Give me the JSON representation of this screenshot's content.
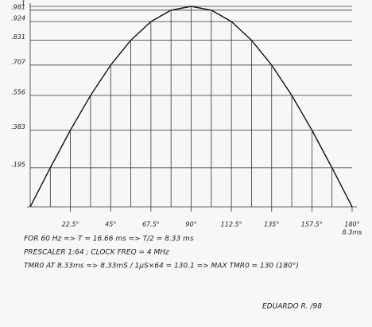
{
  "chart_data": {
    "type": "line",
    "x": [
      0,
      11.25,
      22.5,
      33.75,
      45,
      56.25,
      67.5,
      78.75,
      90,
      101.25,
      112.5,
      123.75,
      135,
      146.25,
      157.5,
      168.75,
      180
    ],
    "values": [
      0,
      0.195,
      0.383,
      0.556,
      0.707,
      0.831,
      0.924,
      0.981,
      1,
      0.981,
      0.924,
      0.831,
      0.707,
      0.556,
      0.383,
      0.195,
      0
    ],
    "color": "#111",
    "xlim": [
      0,
      180
    ],
    "ylim": [
      0,
      1
    ],
    "xticks": [
      {
        "value": 22.5,
        "label": "22.5°"
      },
      {
        "value": 45,
        "label": "45°"
      },
      {
        "value": 67.5,
        "label": "67.5°"
      },
      {
        "value": 90,
        "label": "90°"
      },
      {
        "value": 112.5,
        "label": "112.5°"
      },
      {
        "value": 135,
        "label": "135°"
      },
      {
        "value": 157.5,
        "label": "157.5°"
      },
      {
        "value": 180,
        "label": "180°"
      }
    ],
    "yticks": [
      {
        "value": 0.195,
        "label": ".195"
      },
      {
        "value": 0.383,
        "label": ".383"
      },
      {
        "value": 0.556,
        "label": ".556"
      },
      {
        "value": 0.707,
        "label": ".707"
      },
      {
        "value": 0.831,
        "label": ".831"
      },
      {
        "value": 0.924,
        "label": ".924"
      },
      {
        "value": 0.981,
        "label": ".981"
      },
      1
    ],
    "grid": true,
    "annotations": [
      "8.3ms"
    ],
    "notes": [
      "FOR 60 Hz => T = 16.66 ms => T/2 = 8.33 ms",
      "PRESCALER 1:64 ; CLOCK FREQ = 4 MHz",
      "TMR0 AT 8.33ms => 8.33mS / 1µS×64 = 130.1 => MAX TMR0 = 130 (180°)"
    ],
    "signature": "EDUARDO R. /98"
  }
}
